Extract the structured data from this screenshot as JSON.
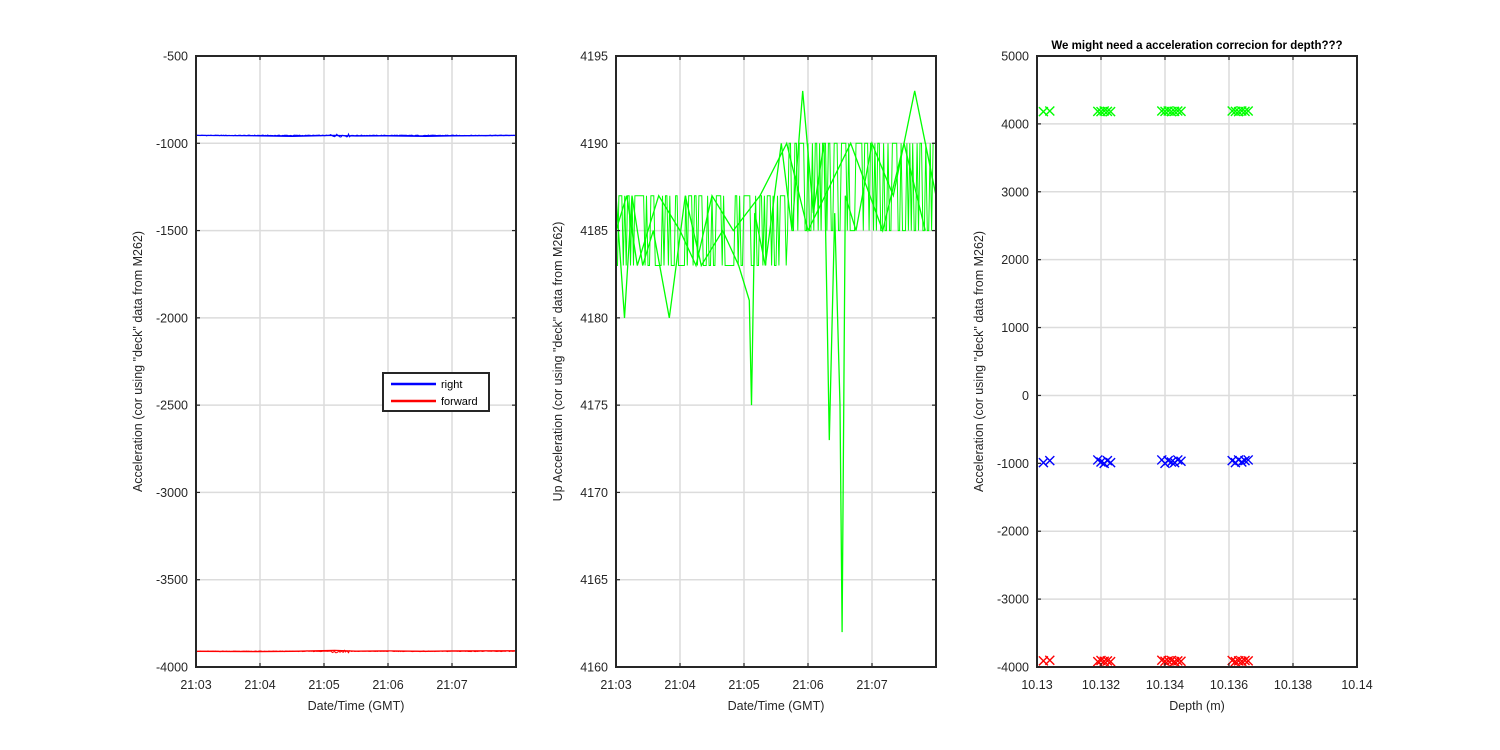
{
  "figure": {
    "background": "#ffffff"
  },
  "chart_data": [
    {
      "type": "line",
      "title": "",
      "xlabel": "Date/Time (GMT)",
      "ylabel": "Acceleration (cor using \"deck\" data from M262)",
      "x_range": [
        "21:03",
        "21:08"
      ],
      "ylim": [
        -4000,
        -500
      ],
      "x_ticks": [
        "21:03",
        "21:04",
        "21:05",
        "21:06",
        "21:07"
      ],
      "y_ticks": [
        -500,
        -1000,
        -1500,
        -2000,
        -2500,
        -3000,
        -3500,
        -4000
      ],
      "grid": true,
      "legend": {
        "placement": "center-right",
        "entries": [
          "right",
          "forward"
        ]
      },
      "series": [
        {
          "name": "right",
          "color": "#0000ff",
          "x": [
            "21:03",
            "21:04",
            "21:04:30",
            "21:05:10",
            "21:05:30",
            "21:06",
            "21:06:35",
            "21:07",
            "21:08"
          ],
          "y": [
            -955,
            -957,
            -960,
            -955,
            -958,
            -957,
            -960,
            -957,
            -955
          ]
        },
        {
          "name": "forward",
          "color": "#ff0000",
          "x": [
            "21:03",
            "21:04",
            "21:04:30",
            "21:05:10",
            "21:05:30",
            "21:06",
            "21:06:35",
            "21:07",
            "21:08"
          ],
          "y": [
            -3910,
            -3912,
            -3910,
            -3905,
            -3909,
            -3908,
            -3910,
            -3908,
            -3907
          ]
        }
      ]
    },
    {
      "type": "line",
      "title": "",
      "xlabel": "Date/Time (GMT)",
      "ylabel": "Up Acceleration (cor using \"deck\" data from M262)",
      "x_range": [
        "21:03",
        "21:08"
      ],
      "ylim": [
        4160,
        4195
      ],
      "x_ticks": [
        "21:03",
        "21:04",
        "21:05",
        "21:06",
        "21:07"
      ],
      "y_ticks": [
        4195,
        4190,
        4185,
        4180,
        4175,
        4170,
        4165,
        4160
      ],
      "grid": true,
      "series": [
        {
          "color": "#00ff00",
          "x": [
            "21:03:00",
            "21:03:08",
            "21:03:15",
            "21:03:25",
            "21:03:35",
            "21:03:50",
            "21:04:05",
            "21:04:20",
            "21:04:40",
            "21:04:55",
            "21:05:05",
            "21:05:07",
            "21:05:10",
            "21:05:20",
            "21:05:35",
            "21:05:45",
            "21:05:55",
            "21:06:05",
            "21:06:15",
            "21:06:18",
            "21:06:20",
            "21:06:25",
            "21:06:30",
            "21:06:32",
            "21:06:35",
            "21:06:45",
            "21:07:00",
            "21:07:20",
            "21:07:40",
            "21:08:00"
          ],
          "y": [
            4187,
            4180,
            4187,
            4183,
            4185,
            4180,
            4187,
            4183,
            4185,
            4183,
            4181,
            4175,
            4186,
            4183,
            4190,
            4185,
            4193,
            4186,
            4190,
            4180,
            4173,
            4186,
            4175,
            4162,
            4187,
            4185,
            4190,
            4187,
            4193,
            4187
          ]
        },
        {
          "color": "#00ff00",
          "x": [
            "21:03:00",
            "21:03:10",
            "21:03:20",
            "21:03:40",
            "21:04:00",
            "21:04:15",
            "21:04:30",
            "21:04:50",
            "21:05:15",
            "21:05:40",
            "21:06:00",
            "21:06:40",
            "21:07:10",
            "21:07:30",
            "21:07:50"
          ],
          "y": [
            4185,
            4187,
            4183,
            4187,
            4185,
            4183,
            4187,
            4185,
            4187,
            4190,
            4185,
            4190,
            4185,
            4190,
            4185
          ]
        }
      ]
    },
    {
      "type": "scatter",
      "title": "We might need a acceleration correcion for depth???",
      "xlabel": "Depth (m)",
      "ylabel": "Acceleration (cor using \"deck\" data from M262)",
      "xlim": [
        10.13,
        10.14
      ],
      "ylim": [
        -4000,
        5000
      ],
      "x_ticks": [
        "10.13",
        "10.132",
        "10.134",
        "10.136",
        "10.138",
        "10.14"
      ],
      "y_ticks": [
        5000,
        4000,
        3000,
        2000,
        1000,
        0,
        -1000,
        -2000,
        -3000,
        -4000
      ],
      "grid": true,
      "marker": "x",
      "series": [
        {
          "color": "#00ff00",
          "x": [
            10.1302,
            10.1304,
            10.1319,
            10.132,
            10.1321,
            10.1322,
            10.1323,
            10.1339,
            10.134,
            10.1341,
            10.1342,
            10.1343,
            10.1344,
            10.1345,
            10.1361,
            10.1362,
            10.1363,
            10.1364,
            10.1365,
            10.1366
          ],
          "y": [
            4180,
            4190,
            4185,
            4180,
            4190,
            4185,
            4180,
            4190,
            4185,
            4190,
            4180,
            4185,
            4190,
            4185,
            4190,
            4185,
            4180,
            4190,
            4185,
            4190
          ]
        },
        {
          "color": "#0000ff",
          "x": [
            10.1302,
            10.1304,
            10.1319,
            10.132,
            10.1321,
            10.1322,
            10.1323,
            10.1339,
            10.134,
            10.1341,
            10.1342,
            10.1343,
            10.1344,
            10.1345,
            10.1361,
            10.1362,
            10.1363,
            10.1364,
            10.1365,
            10.1366
          ],
          "y": [
            -990,
            -960,
            -950,
            -980,
            -1000,
            -960,
            -990,
            -950,
            -1000,
            -960,
            -980,
            -990,
            -950,
            -970,
            -960,
            -990,
            -950,
            -980,
            -960,
            -950
          ]
        },
        {
          "color": "#ff0000",
          "x": [
            10.1302,
            10.1304,
            10.1319,
            10.132,
            10.1321,
            10.1322,
            10.1323,
            10.1339,
            10.134,
            10.1341,
            10.1342,
            10.1343,
            10.1344,
            10.1345,
            10.1361,
            10.1362,
            10.1363,
            10.1364,
            10.1365,
            10.1366
          ],
          "y": [
            -3910,
            -3900,
            -3920,
            -3905,
            -3915,
            -3910,
            -3920,
            -3900,
            -3915,
            -3910,
            -3905,
            -3920,
            -3910,
            -3915,
            -3905,
            -3920,
            -3910,
            -3915,
            -3905,
            -3910
          ]
        }
      ]
    }
  ]
}
